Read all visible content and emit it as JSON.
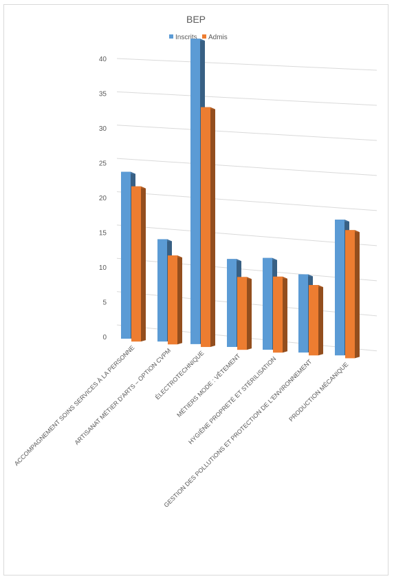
{
  "chart_data": {
    "type": "bar",
    "title": "BEP",
    "xlabel": "",
    "ylabel": "",
    "ylim": [
      0,
      40
    ],
    "yticks": [
      0,
      5,
      10,
      15,
      20,
      25,
      30,
      35,
      40
    ],
    "grid": true,
    "legend_position": "top",
    "categories": [
      "ACCOMPAGNEMENT SOINS SERVICES À LA PERSONNE",
      "ARTISANAT MÉTIER D'ARTS – OPTION CVPM",
      "ÉLECTROTECHNIQUE",
      "MÉTIERS MODE : VÊTEMENT",
      "HYGIÈNE PROPRETÉ ET STÉRILISATION",
      "GESTION DES POLLUTIONS ET PROTECTION DE L'ENVIRONNEMENT",
      "PRODUCTION MÉCANIQUE"
    ],
    "series": [
      {
        "name": "Inscrits",
        "color": "#5b9bd5",
        "values": [
          24,
          14,
          40,
          11,
          11,
          9,
          15
        ]
      },
      {
        "name": "Admis",
        "color": "#ed7d31",
        "values": [
          22,
          12,
          31,
          9,
          9,
          8,
          14
        ]
      }
    ]
  }
}
